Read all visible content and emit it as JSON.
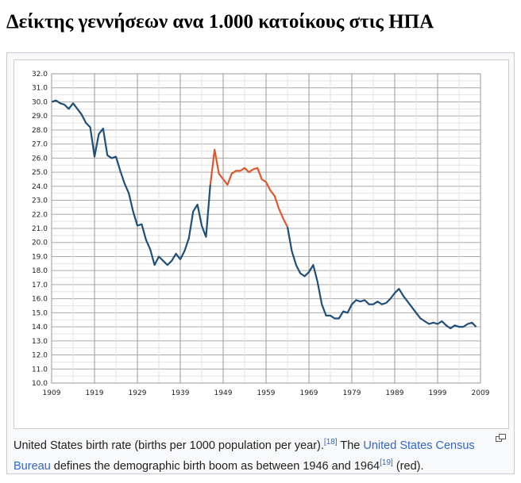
{
  "title": "Δείκτης γεννήσεων ανα 1.000 κατοίκους στις ΗΠΑ",
  "caption": {
    "text1": "United States birth rate (births per 1000 population per year).",
    "ref1": "[18]",
    "text2": " The ",
    "link1": "United States Census Bureau",
    "text3": " defines the demographic birth boom as between 1946 and 1964",
    "ref2": "[19]",
    "text4": " (red)."
  },
  "icons": {
    "enlarge": "enlarge-icon"
  },
  "chart_data": {
    "type": "line",
    "title": "",
    "xlabel": "",
    "ylabel": "",
    "xlim": [
      1909,
      2009
    ],
    "ylim": [
      10,
      32
    ],
    "x_ticks": [
      "1909",
      "1919",
      "1929",
      "1939",
      "1949",
      "1959",
      "1969",
      "1979",
      "1989",
      "1999",
      "2009"
    ],
    "y_ticks": [
      "10.0",
      "11.0",
      "12.0",
      "13.0",
      "14.0",
      "15.0",
      "16.0",
      "17.0",
      "18.0",
      "19.0",
      "20.0",
      "21.0",
      "22.0",
      "23.0",
      "24.0",
      "25.0",
      "26.0",
      "27.0",
      "28.0",
      "29.0",
      "30.0",
      "31.0",
      "32.0"
    ],
    "grid": true,
    "colors": {
      "normal": "#1f4e79",
      "boom": "#e0572b"
    },
    "boom_range": [
      1946,
      1964
    ],
    "x_start": 1909,
    "values": [
      30.0,
      30.1,
      29.9,
      29.8,
      29.5,
      29.9,
      29.5,
      29.1,
      28.5,
      28.2,
      26.1,
      27.7,
      28.1,
      26.2,
      26.0,
      26.1,
      25.1,
      24.2,
      23.5,
      22.2,
      21.2,
      21.3,
      20.2,
      19.5,
      18.4,
      19.0,
      18.7,
      18.4,
      18.7,
      19.2,
      18.8,
      19.4,
      20.3,
      22.2,
      22.7,
      21.2,
      20.4,
      24.1,
      26.6,
      24.9,
      24.5,
      24.1,
      24.9,
      25.1,
      25.1,
      25.3,
      25.0,
      25.2,
      25.3,
      24.5,
      24.3,
      23.7,
      23.3,
      22.4,
      21.7,
      21.1,
      19.4,
      18.4,
      17.8,
      17.6,
      17.9,
      18.4,
      17.2,
      15.6,
      14.8,
      14.8,
      14.6,
      14.6,
      15.1,
      15.0,
      15.6,
      15.9,
      15.8,
      15.9,
      15.6,
      15.6,
      15.8,
      15.6,
      15.7,
      16.0,
      16.4,
      16.7,
      16.2,
      15.8,
      15.4,
      15.0,
      14.6,
      14.4,
      14.2,
      14.3,
      14.2,
      14.4,
      14.1,
      13.9,
      14.1,
      14.0,
      14.0,
      14.2,
      14.3,
      14.0
    ]
  }
}
